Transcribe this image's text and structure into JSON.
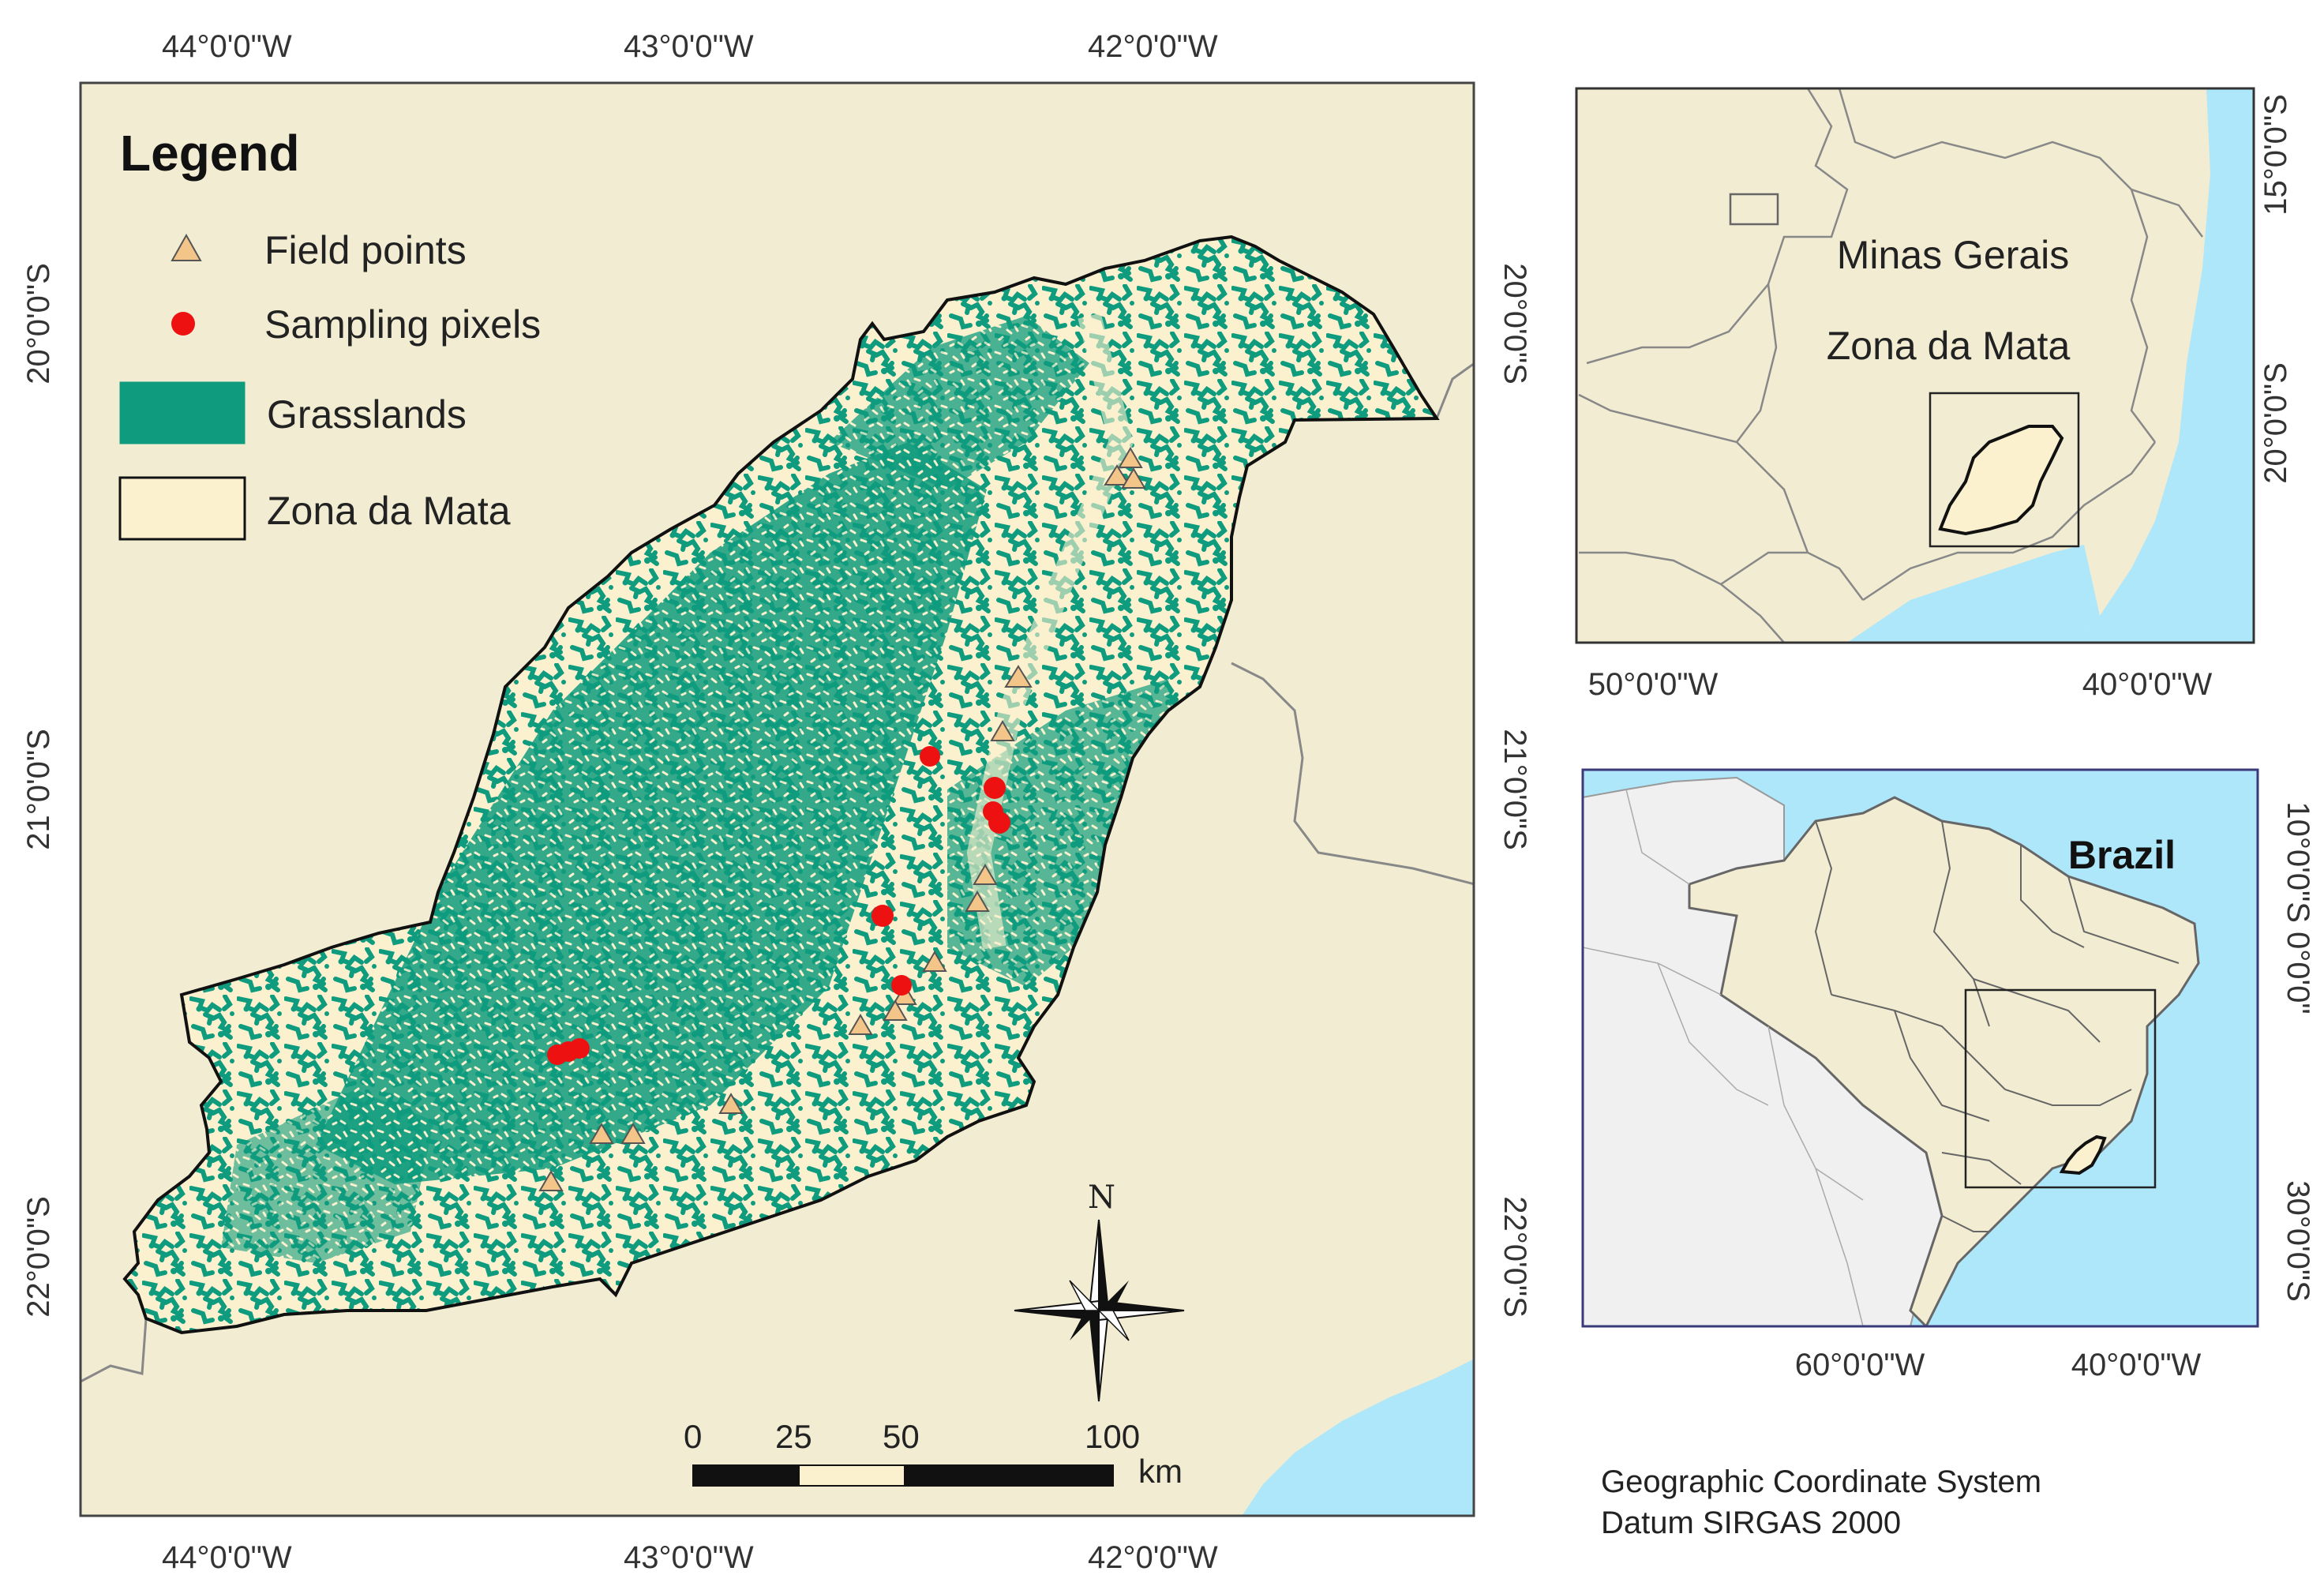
{
  "colors": {
    "background_land": "#f1ecd2",
    "zona_da_mata": "#fcf1cf",
    "grassland": "#0f9c7e",
    "ocean": "#aee6fa",
    "outside_brazil": "#f0f0f0",
    "field_point": "#f4c589",
    "sampling_pixel": "#ee1111",
    "border": "#666666"
  },
  "main_map": {
    "legend": {
      "title": "Legend",
      "items": [
        {
          "label": "Field points",
          "symbol": "triangle-icon"
        },
        {
          "label": "Sampling pixels",
          "symbol": "dot-icon"
        },
        {
          "label": "Grasslands",
          "symbol": "green-box"
        },
        {
          "label": "Zona da Mata",
          "symbol": "cream-box"
        }
      ]
    },
    "top_lon_labels": [
      "44°0'0\"W",
      "43°0'0\"W",
      "42°0'0\"W"
    ],
    "bottom_lon_labels": [
      "44°0'0\"W",
      "43°0'0\"W",
      "42°0'0\"W"
    ],
    "left_lat_labels": [
      "20°0'0\"S",
      "21°0'0\"S",
      "22°0'0\"S"
    ],
    "right_lat_labels": [
      "20°0'0\"S",
      "21°0'0\"S",
      "22°0'0\"S"
    ],
    "north_label": "N",
    "scale_bar": {
      "ticks": [
        "0",
        "25",
        "50",
        "100"
      ],
      "unit": "km"
    }
  },
  "inset_top": {
    "labels": {
      "state": "Minas Gerais",
      "region": "Zona da Mata"
    },
    "bottom_lon_labels": [
      "50°0'0\"W",
      "40°0'0\"W"
    ],
    "right_lat_labels": [
      "15°0'0\"S",
      "20°0'0\"S"
    ]
  },
  "inset_bottom": {
    "labels": {
      "country": "Brazil"
    },
    "bottom_lon_labels": [
      "60°0'0\"W",
      "40°0'0\"W"
    ],
    "right_lat_labels": [
      "10°0'0\"S 0°0'0\"",
      "30°0'0\"S"
    ]
  },
  "footnote": {
    "line1": "Geographic Coordinate System",
    "line2": "Datum SIRGAS 2000"
  }
}
